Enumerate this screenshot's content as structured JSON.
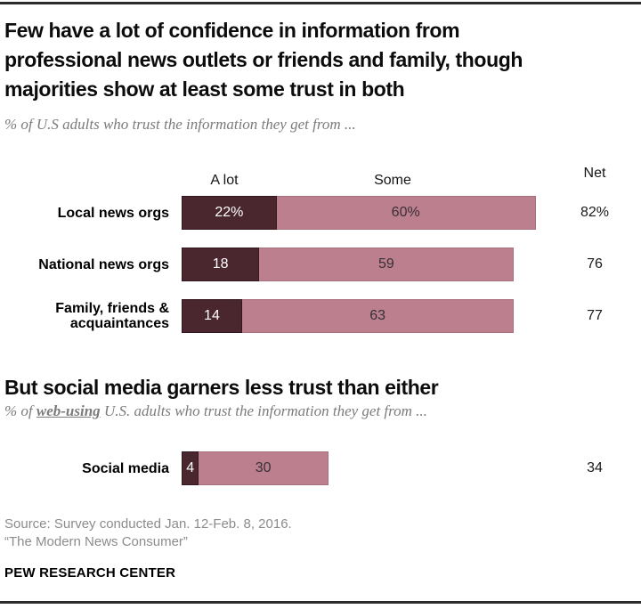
{
  "header": {
    "title": "Few have a lot of confidence in information from\nprofessional news outlets or friends and family, though\nmajorities show at least some trust in both",
    "subtitle": "% of U.S adults who trust the information they get from ..."
  },
  "section2": {
    "title": "But social media garners less trust than either",
    "subtitle_prefix": "% of ",
    "subtitle_underlined": "web-using",
    "subtitle_suffix": " U.S. adults who trust the information they get from ..."
  },
  "chart_data": {
    "type": "bar",
    "orientation": "horizontal",
    "stacked": true,
    "axis_unit": "percent",
    "column_headers": {
      "a_lot": "A lot",
      "some": "Some",
      "net": "Net"
    },
    "series_names": [
      "A lot",
      "Some"
    ],
    "colors": {
      "a_lot": "#4a262e",
      "some": "#bb7f8d"
    },
    "groups": [
      {
        "name": "us-adults",
        "rows": [
          {
            "label": "Local news orgs",
            "a_lot": 22,
            "some": 60,
            "net": 82,
            "a_lot_label": "22%",
            "some_label": "60%",
            "net_label": "82%"
          },
          {
            "label": "National news orgs",
            "a_lot": 18,
            "some": 59,
            "net": 76,
            "a_lot_label": "18",
            "some_label": "59",
            "net_label": "76"
          },
          {
            "label": "Family, friends &\nacquaintances",
            "a_lot": 14,
            "some": 63,
            "net": 77,
            "a_lot_label": "14",
            "some_label": "63",
            "net_label": "77"
          }
        ]
      },
      {
        "name": "web-using-adults",
        "rows": [
          {
            "label": "Social media",
            "a_lot": 4,
            "some": 30,
            "net": 34,
            "a_lot_label": "4",
            "some_label": "30",
            "net_label": "34"
          }
        ]
      }
    ]
  },
  "footer": {
    "source_line1": "Source: Survey conducted Jan. 12-Feb. 8, 2016.",
    "source_line2": "“The Modern News Consumer”",
    "org": "PEW RESEARCH CENTER"
  }
}
